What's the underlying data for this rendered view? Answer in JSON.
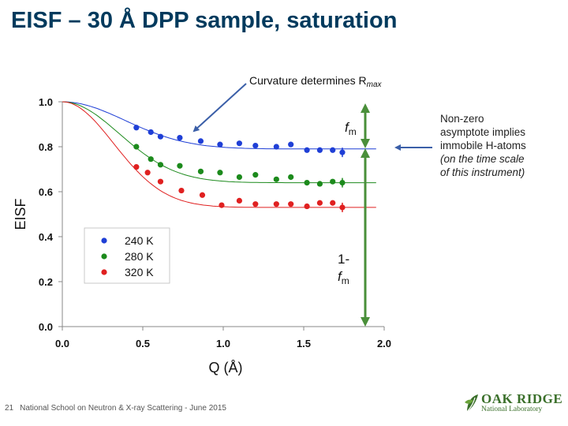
{
  "slide": {
    "title": "EISF – 30 Å DPP sample, saturation",
    "footer_number": "21",
    "footer_text": "National School on Neutron & X-ray Scattering - June 2015",
    "logo_text": "OAK RIDGE",
    "logo_subtext": "National Laboratory"
  },
  "annotations": {
    "curvature_prefix": "Curvature determines R",
    "curvature_sub": "max",
    "fm_main": "f",
    "fm_sub": "m",
    "one_minus_fm_main": "1-",
    "one_minus_fm_f": "f",
    "one_minus_fm_sub": "m",
    "note_lines": [
      "Non-zero",
      "asymptote implies",
      "immobile H-atoms"
    ],
    "note_italic_lines": [
      "(on the time scale",
      "of this instrument)"
    ]
  },
  "colors": {
    "title": "#003a5d",
    "series_240": "#1f3fd6",
    "series_280": "#1c8a1c",
    "series_320": "#e02020",
    "arrow": "#3b5fa8",
    "green_arrow": "#4a8f3a"
  },
  "chart_data": {
    "type": "scatter",
    "xlabel": "Q (Å)",
    "ylabel": "EISF",
    "xlim": [
      0.0,
      2.0
    ],
    "ylim": [
      0.0,
      1.0
    ],
    "x_ticks": [
      "0.0",
      "0.5",
      "1.0",
      "1.5",
      "2.0"
    ],
    "y_ticks": [
      "0.0",
      "0.2",
      "0.4",
      "0.6",
      "0.8",
      "1.0"
    ],
    "grid": false,
    "legend_position": "bottom-left",
    "series": [
      {
        "name": "240 K",
        "color": "#1f3fd6",
        "x": [
          0.46,
          0.55,
          0.61,
          0.73,
          0.86,
          0.98,
          1.1,
          1.2,
          1.33,
          1.42,
          1.52,
          1.6,
          1.68,
          1.74
        ],
        "y": [
          0.885,
          0.865,
          0.845,
          0.84,
          0.825,
          0.81,
          0.815,
          0.805,
          0.8,
          0.81,
          0.785,
          0.785,
          0.785,
          0.775
        ],
        "fit": {
          "asymptote": 0.79,
          "width": 0.55
        }
      },
      {
        "name": "280 K",
        "color": "#1c8a1c",
        "x": [
          0.46,
          0.55,
          0.61,
          0.73,
          0.86,
          0.98,
          1.1,
          1.2,
          1.33,
          1.42,
          1.52,
          1.6,
          1.68,
          1.74
        ],
        "y": [
          0.8,
          0.745,
          0.72,
          0.715,
          0.69,
          0.685,
          0.665,
          0.675,
          0.655,
          0.665,
          0.64,
          0.635,
          0.645,
          0.64
        ],
        "fit": {
          "asymptote": 0.64,
          "width": 0.5
        }
      },
      {
        "name": "320 K",
        "color": "#e02020",
        "x": [
          0.46,
          0.53,
          0.61,
          0.74,
          0.87,
          0.99,
          1.1,
          1.2,
          1.33,
          1.42,
          1.52,
          1.6,
          1.68,
          1.74
        ],
        "y": [
          0.71,
          0.685,
          0.645,
          0.605,
          0.585,
          0.54,
          0.56,
          0.545,
          0.545,
          0.545,
          0.535,
          0.55,
          0.55,
          0.53
        ],
        "fit": {
          "asymptote": 0.53,
          "width": 0.45
        }
      }
    ]
  }
}
